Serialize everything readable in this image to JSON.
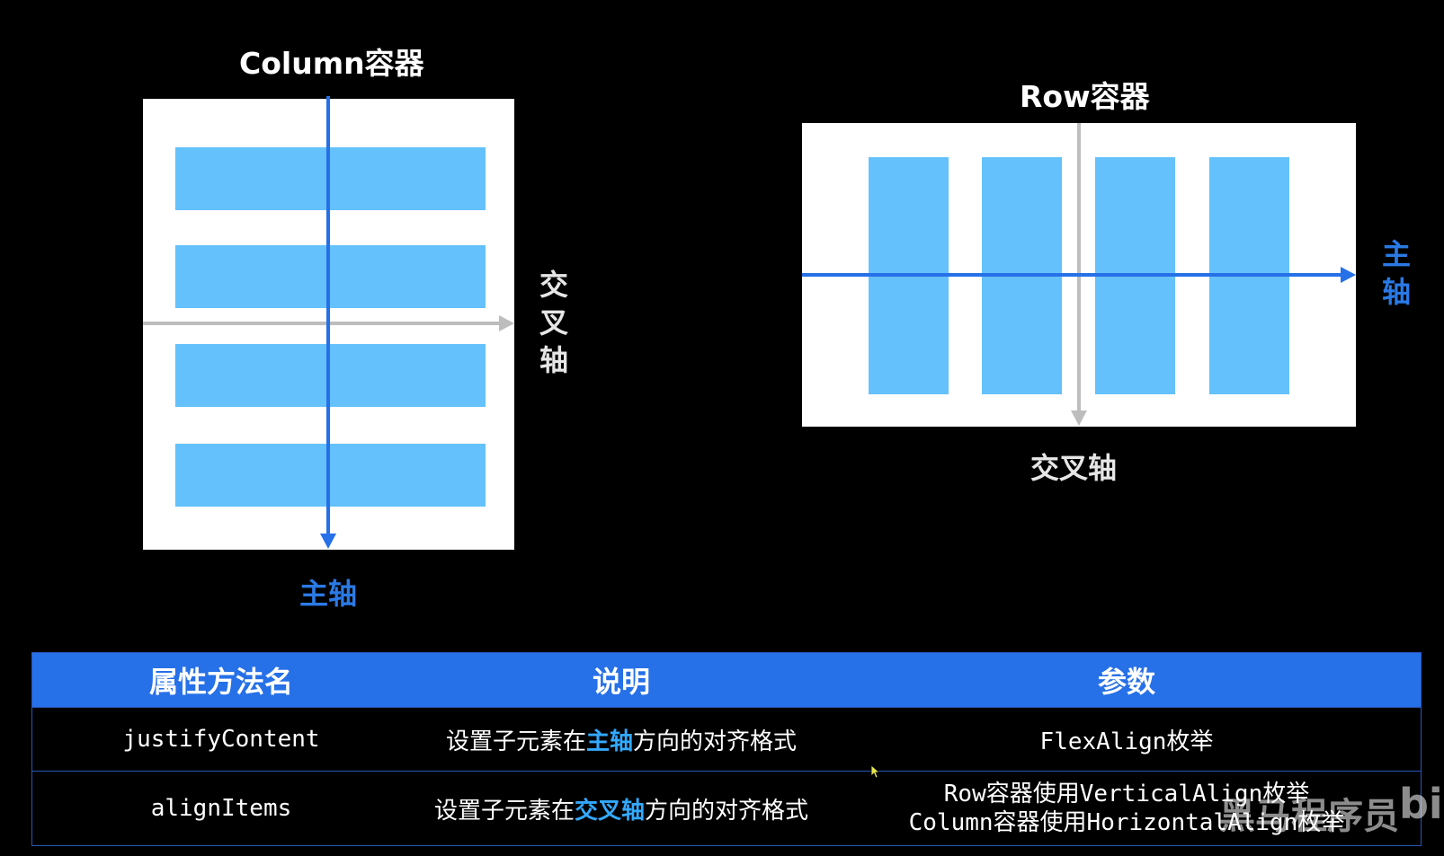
{
  "column_diagram": {
    "title": "Column容器",
    "main_axis_label": "主轴",
    "cross_axis_label": [
      "交",
      "叉",
      "轴"
    ]
  },
  "row_diagram": {
    "title": "Row容器",
    "main_axis_label": [
      "主",
      "轴"
    ],
    "cross_axis_label": "交叉轴"
  },
  "colors": {
    "main_axis": "#2670e8",
    "cross_axis": "#bdbdbd",
    "child_item": "#64c1fb",
    "container": "#ffffff",
    "table_header": "#2670e8"
  },
  "table": {
    "headers": [
      "属性方法名",
      "说明",
      "参数"
    ],
    "rows": [
      {
        "name": "justifyContent",
        "desc_before": "设置子元素在",
        "desc_highlight": "主轴",
        "desc_after": "方向的对齐格式",
        "params": [
          "FlexAlign枚举"
        ]
      },
      {
        "name": "alignItems",
        "desc_before": "设置子元素在",
        "desc_highlight": "交叉轴",
        "desc_after": "方向的对齐格式",
        "params": [
          "Row容器使用VerticalAlign枚举",
          "Column容器使用HorizontalAlign枚举"
        ]
      }
    ]
  },
  "watermark": {
    "text": "黑马程序员",
    "logo_text": "bili"
  }
}
